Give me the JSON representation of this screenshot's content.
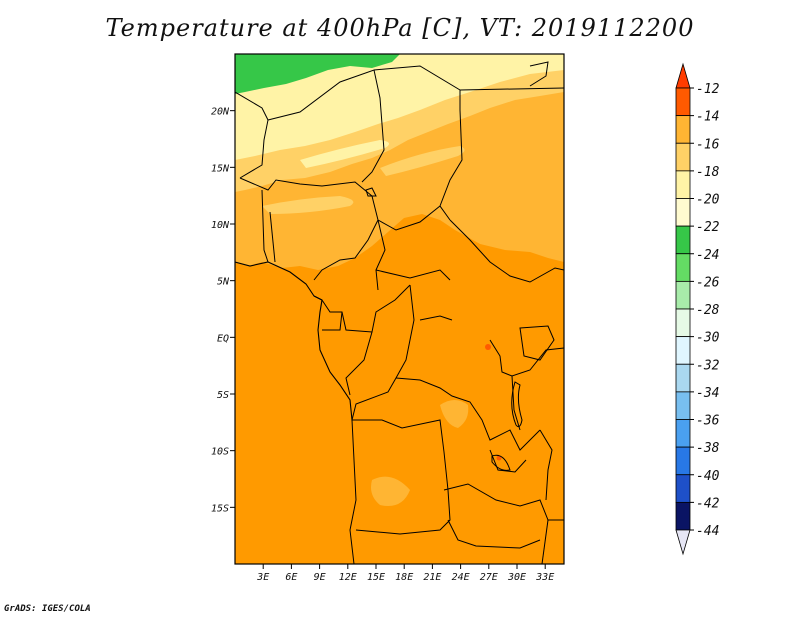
{
  "title": "Temperature at 400hPa [C], VT: 2019112200",
  "credit": "GrADS: IGES/COLA",
  "map": {
    "lon_range": [
      0,
      35
    ],
    "lat_range": [
      -20,
      25
    ],
    "x_ticks": [
      {
        "lon": 3,
        "label": "3E"
      },
      {
        "lon": 6,
        "label": "6E"
      },
      {
        "lon": 9,
        "label": "9E"
      },
      {
        "lon": 12,
        "label": "12E"
      },
      {
        "lon": 15,
        "label": "15E"
      },
      {
        "lon": 18,
        "label": "18E"
      },
      {
        "lon": 21,
        "label": "21E"
      },
      {
        "lon": 24,
        "label": "24E"
      },
      {
        "lon": 27,
        "label": "27E"
      },
      {
        "lon": 30,
        "label": "30E"
      },
      {
        "lon": 33,
        "label": "33E"
      }
    ],
    "y_ticks": [
      {
        "lat": 20,
        "label": "20N"
      },
      {
        "lat": 15,
        "label": "15N"
      },
      {
        "lat": 10,
        "label": "10N"
      },
      {
        "lat": 5,
        "label": "5N"
      },
      {
        "lat": 0,
        "label": "EQ"
      },
      {
        "lat": -5,
        "label": "5S"
      },
      {
        "lat": -10,
        "label": "10S"
      },
      {
        "lat": -15,
        "label": "15S"
      }
    ]
  },
  "colorbar": {
    "bins": [
      {
        "color": "#ff5a00",
        "label": "-12"
      },
      {
        "color": "#ff9a00",
        "label": "-14"
      },
      {
        "color": "#ffb533",
        "label": "-16"
      },
      {
        "color": "#ffd166",
        "label": "-18"
      },
      {
        "color": "#fff3a6",
        "label": "-20"
      },
      {
        "color": "#fffbd0",
        "label": "-22"
      },
      {
        "color": "#36c748",
        "label": "-24"
      },
      {
        "color": "#64dc64",
        "label": "-26"
      },
      {
        "color": "#a8ecaa",
        "label": "-28"
      },
      {
        "color": "#e6fae6",
        "label": "-30"
      },
      {
        "color": "#e0f6ff",
        "label": "-32"
      },
      {
        "color": "#aad8f0",
        "label": "-34"
      },
      {
        "color": "#78bff0",
        "label": "-36"
      },
      {
        "color": "#4aa0f0",
        "label": "-38"
      },
      {
        "color": "#2878e6",
        "label": "-40"
      },
      {
        "color": "#1e50c8",
        "label": "-42"
      },
      {
        "color": "#143296",
        "label": "-44"
      }
    ],
    "top_arrow_color": "#ff3c00",
    "bottom_arrow_color": "#e6e6f5",
    "deep_color": "#0a1464"
  }
}
